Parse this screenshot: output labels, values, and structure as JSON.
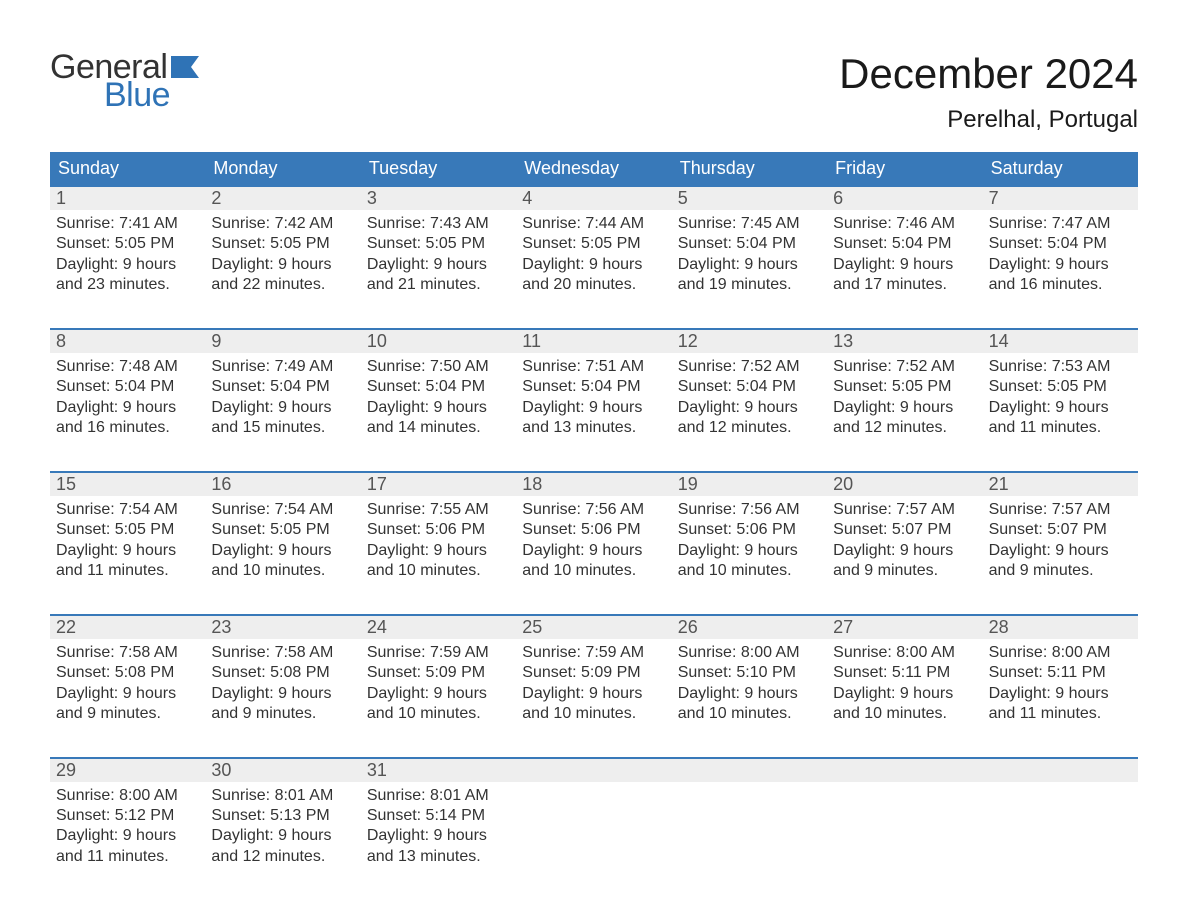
{
  "logo": {
    "text1": "General",
    "text2": "Blue",
    "flag_color": "#2f73b6"
  },
  "title": "December 2024",
  "location": "Perelhal, Portugal",
  "colors": {
    "header_bg": "#3879b9",
    "header_text": "#ffffff",
    "daynum_bg": "#eeeeee",
    "week_border": "#3879b9",
    "body_text": "#333333",
    "logo_blue": "#2f73b6"
  },
  "day_headers": [
    "Sunday",
    "Monday",
    "Tuesday",
    "Wednesday",
    "Thursday",
    "Friday",
    "Saturday"
  ],
  "weeks": [
    [
      {
        "n": "1",
        "sunrise": "7:41 AM",
        "sunset": "5:05 PM",
        "dl1": "Daylight: 9 hours",
        "dl2": "and 23 minutes."
      },
      {
        "n": "2",
        "sunrise": "7:42 AM",
        "sunset": "5:05 PM",
        "dl1": "Daylight: 9 hours",
        "dl2": "and 22 minutes."
      },
      {
        "n": "3",
        "sunrise": "7:43 AM",
        "sunset": "5:05 PM",
        "dl1": "Daylight: 9 hours",
        "dl2": "and 21 minutes."
      },
      {
        "n": "4",
        "sunrise": "7:44 AM",
        "sunset": "5:05 PM",
        "dl1": "Daylight: 9 hours",
        "dl2": "and 20 minutes."
      },
      {
        "n": "5",
        "sunrise": "7:45 AM",
        "sunset": "5:04 PM",
        "dl1": "Daylight: 9 hours",
        "dl2": "and 19 minutes."
      },
      {
        "n": "6",
        "sunrise": "7:46 AM",
        "sunset": "5:04 PM",
        "dl1": "Daylight: 9 hours",
        "dl2": "and 17 minutes."
      },
      {
        "n": "7",
        "sunrise": "7:47 AM",
        "sunset": "5:04 PM",
        "dl1": "Daylight: 9 hours",
        "dl2": "and 16 minutes."
      }
    ],
    [
      {
        "n": "8",
        "sunrise": "7:48 AM",
        "sunset": "5:04 PM",
        "dl1": "Daylight: 9 hours",
        "dl2": "and 16 minutes."
      },
      {
        "n": "9",
        "sunrise": "7:49 AM",
        "sunset": "5:04 PM",
        "dl1": "Daylight: 9 hours",
        "dl2": "and 15 minutes."
      },
      {
        "n": "10",
        "sunrise": "7:50 AM",
        "sunset": "5:04 PM",
        "dl1": "Daylight: 9 hours",
        "dl2": "and 14 minutes."
      },
      {
        "n": "11",
        "sunrise": "7:51 AM",
        "sunset": "5:04 PM",
        "dl1": "Daylight: 9 hours",
        "dl2": "and 13 minutes."
      },
      {
        "n": "12",
        "sunrise": "7:52 AM",
        "sunset": "5:04 PM",
        "dl1": "Daylight: 9 hours",
        "dl2": "and 12 minutes."
      },
      {
        "n": "13",
        "sunrise": "7:52 AM",
        "sunset": "5:05 PM",
        "dl1": "Daylight: 9 hours",
        "dl2": "and 12 minutes."
      },
      {
        "n": "14",
        "sunrise": "7:53 AM",
        "sunset": "5:05 PM",
        "dl1": "Daylight: 9 hours",
        "dl2": "and 11 minutes."
      }
    ],
    [
      {
        "n": "15",
        "sunrise": "7:54 AM",
        "sunset": "5:05 PM",
        "dl1": "Daylight: 9 hours",
        "dl2": "and 11 minutes."
      },
      {
        "n": "16",
        "sunrise": "7:54 AM",
        "sunset": "5:05 PM",
        "dl1": "Daylight: 9 hours",
        "dl2": "and 10 minutes."
      },
      {
        "n": "17",
        "sunrise": "7:55 AM",
        "sunset": "5:06 PM",
        "dl1": "Daylight: 9 hours",
        "dl2": "and 10 minutes."
      },
      {
        "n": "18",
        "sunrise": "7:56 AM",
        "sunset": "5:06 PM",
        "dl1": "Daylight: 9 hours",
        "dl2": "and 10 minutes."
      },
      {
        "n": "19",
        "sunrise": "7:56 AM",
        "sunset": "5:06 PM",
        "dl1": "Daylight: 9 hours",
        "dl2": "and 10 minutes."
      },
      {
        "n": "20",
        "sunrise": "7:57 AM",
        "sunset": "5:07 PM",
        "dl1": "Daylight: 9 hours",
        "dl2": "and 9 minutes."
      },
      {
        "n": "21",
        "sunrise": "7:57 AM",
        "sunset": "5:07 PM",
        "dl1": "Daylight: 9 hours",
        "dl2": "and 9 minutes."
      }
    ],
    [
      {
        "n": "22",
        "sunrise": "7:58 AM",
        "sunset": "5:08 PM",
        "dl1": "Daylight: 9 hours",
        "dl2": "and 9 minutes."
      },
      {
        "n": "23",
        "sunrise": "7:58 AM",
        "sunset": "5:08 PM",
        "dl1": "Daylight: 9 hours",
        "dl2": "and 9 minutes."
      },
      {
        "n": "24",
        "sunrise": "7:59 AM",
        "sunset": "5:09 PM",
        "dl1": "Daylight: 9 hours",
        "dl2": "and 10 minutes."
      },
      {
        "n": "25",
        "sunrise": "7:59 AM",
        "sunset": "5:09 PM",
        "dl1": "Daylight: 9 hours",
        "dl2": "and 10 minutes."
      },
      {
        "n": "26",
        "sunrise": "8:00 AM",
        "sunset": "5:10 PM",
        "dl1": "Daylight: 9 hours",
        "dl2": "and 10 minutes."
      },
      {
        "n": "27",
        "sunrise": "8:00 AM",
        "sunset": "5:11 PM",
        "dl1": "Daylight: 9 hours",
        "dl2": "and 10 minutes."
      },
      {
        "n": "28",
        "sunrise": "8:00 AM",
        "sunset": "5:11 PM",
        "dl1": "Daylight: 9 hours",
        "dl2": "and 11 minutes."
      }
    ],
    [
      {
        "n": "29",
        "sunrise": "8:00 AM",
        "sunset": "5:12 PM",
        "dl1": "Daylight: 9 hours",
        "dl2": "and 11 minutes."
      },
      {
        "n": "30",
        "sunrise": "8:01 AM",
        "sunset": "5:13 PM",
        "dl1": "Daylight: 9 hours",
        "dl2": "and 12 minutes."
      },
      {
        "n": "31",
        "sunrise": "8:01 AM",
        "sunset": "5:14 PM",
        "dl1": "Daylight: 9 hours",
        "dl2": "and 13 minutes."
      },
      null,
      null,
      null,
      null
    ]
  ],
  "labels": {
    "sunrise_prefix": "Sunrise: ",
    "sunset_prefix": "Sunset: "
  }
}
